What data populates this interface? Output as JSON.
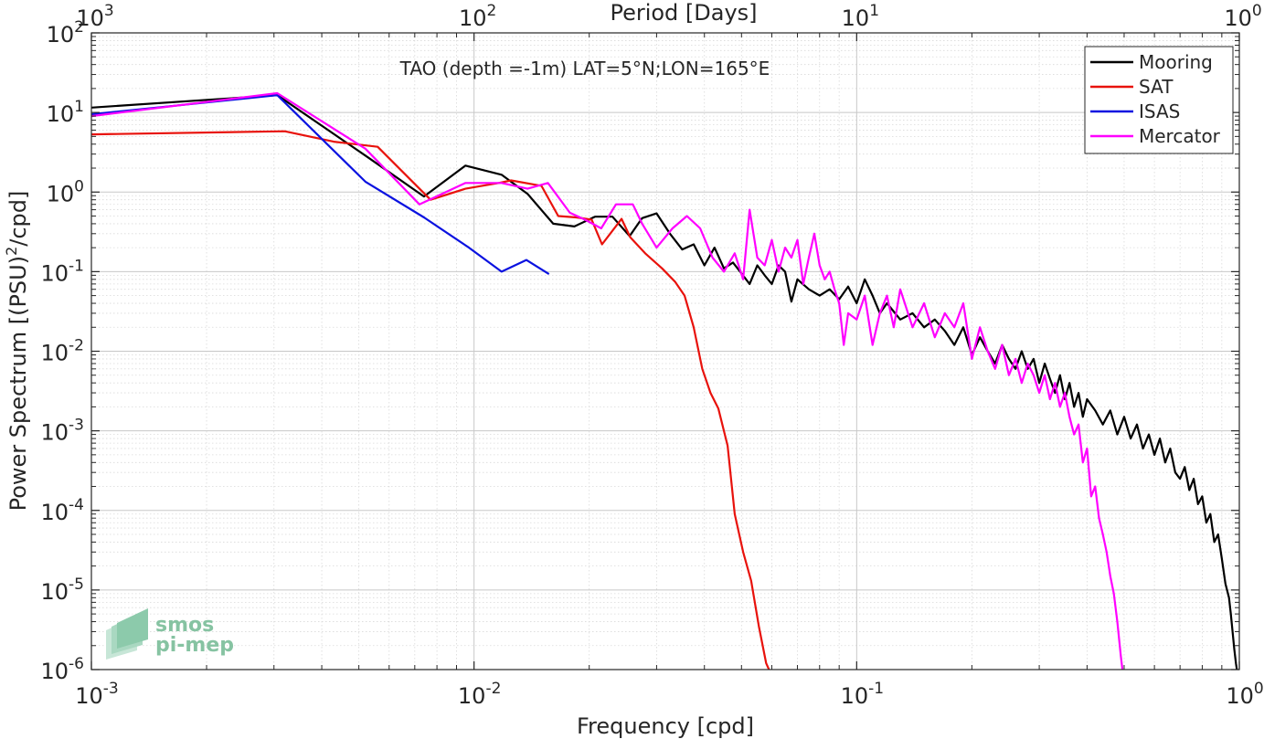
{
  "chart_data": {
    "type": "line",
    "annotation": "TAO (depth =-1m) LAT=5°N;LON=165°E",
    "xlabel": "Frequency [cpd]",
    "ylabel": "Power Spectrum [(PSU)²/cpd]",
    "top_axis_label": "Period [Days]",
    "x_scale": "log",
    "y_scale": "log",
    "xlim": [
      0.001,
      1
    ],
    "ylim": [
      1e-06,
      100
    ],
    "grid": true,
    "legend_position": "top-right",
    "x_ticks": [
      {
        "value": 0.001,
        "mantissa": "10",
        "exp": "-3"
      },
      {
        "value": 0.01,
        "mantissa": "10",
        "exp": "-2"
      },
      {
        "value": 0.1,
        "mantissa": "10",
        "exp": "-1"
      },
      {
        "value": 1,
        "mantissa": "10",
        "exp": "0"
      }
    ],
    "top_ticks": [
      {
        "value": 0.001,
        "mantissa": "10",
        "exp": "3"
      },
      {
        "value": 0.01,
        "mantissa": "10",
        "exp": "2"
      },
      {
        "value": 0.1,
        "mantissa": "10",
        "exp": "1"
      },
      {
        "value": 1,
        "mantissa": "10",
        "exp": "0"
      }
    ],
    "y_ticks": [
      {
        "value": 100,
        "mantissa": "10",
        "exp": "2"
      },
      {
        "value": 10,
        "mantissa": "10",
        "exp": "1"
      },
      {
        "value": 1,
        "mantissa": "10",
        "exp": "0"
      },
      {
        "value": 0.1,
        "mantissa": "10",
        "exp": "-1"
      },
      {
        "value": 0.01,
        "mantissa": "10",
        "exp": "-2"
      },
      {
        "value": 0.001,
        "mantissa": "10",
        "exp": "-3"
      },
      {
        "value": 0.0001,
        "mantissa": "10",
        "exp": "-4"
      },
      {
        "value": 1e-05,
        "mantissa": "10",
        "exp": "-5"
      },
      {
        "value": 1e-06,
        "mantissa": "10",
        "exp": "-6"
      }
    ],
    "series": [
      {
        "name": "Mooring",
        "color": "#000000",
        "points": [
          [
            0.001,
            11.5
          ],
          [
            0.00306,
            16.5
          ],
          [
            0.0053,
            2.7
          ],
          [
            0.0074,
            0.88
          ],
          [
            0.0095,
            2.15
          ],
          [
            0.0118,
            1.65
          ],
          [
            0.0138,
            0.95
          ],
          [
            0.0161,
            0.4
          ],
          [
            0.0183,
            0.37
          ],
          [
            0.0207,
            0.49
          ],
          [
            0.023,
            0.49
          ],
          [
            0.0255,
            0.28
          ],
          [
            0.0275,
            0.47
          ],
          [
            0.03,
            0.54
          ],
          [
            0.0325,
            0.3
          ],
          [
            0.035,
            0.19
          ],
          [
            0.0375,
            0.22
          ],
          [
            0.04,
            0.12
          ],
          [
            0.0425,
            0.2
          ],
          [
            0.045,
            0.11
          ],
          [
            0.0475,
            0.13
          ],
          [
            0.05,
            0.095
          ],
          [
            0.0525,
            0.07
          ],
          [
            0.055,
            0.12
          ],
          [
            0.0575,
            0.09
          ],
          [
            0.06,
            0.07
          ],
          [
            0.0625,
            0.12
          ],
          [
            0.065,
            0.1
          ],
          [
            0.0675,
            0.042
          ],
          [
            0.07,
            0.08
          ],
          [
            0.075,
            0.06
          ],
          [
            0.08,
            0.05
          ],
          [
            0.085,
            0.06
          ],
          [
            0.09,
            0.045
          ],
          [
            0.095,
            0.065
          ],
          [
            0.1,
            0.04
          ],
          [
            0.105,
            0.08
          ],
          [
            0.11,
            0.05
          ],
          [
            0.115,
            0.03
          ],
          [
            0.12,
            0.04
          ],
          [
            0.13,
            0.025
          ],
          [
            0.14,
            0.03
          ],
          [
            0.15,
            0.02
          ],
          [
            0.16,
            0.025
          ],
          [
            0.17,
            0.018
          ],
          [
            0.18,
            0.012
          ],
          [
            0.19,
            0.02
          ],
          [
            0.2,
            0.009
          ],
          [
            0.21,
            0.015
          ],
          [
            0.22,
            0.01
          ],
          [
            0.23,
            0.007
          ],
          [
            0.24,
            0.012
          ],
          [
            0.25,
            0.008
          ],
          [
            0.26,
            0.006
          ],
          [
            0.27,
            0.01
          ],
          [
            0.28,
            0.006
          ],
          [
            0.29,
            0.008
          ],
          [
            0.3,
            0.004
          ],
          [
            0.31,
            0.007
          ],
          [
            0.32,
            0.0045
          ],
          [
            0.33,
            0.003
          ],
          [
            0.34,
            0.005
          ],
          [
            0.35,
            0.0025
          ],
          [
            0.36,
            0.004
          ],
          [
            0.37,
            0.002
          ],
          [
            0.38,
            0.003
          ],
          [
            0.39,
            0.0015
          ],
          [
            0.4,
            0.0025
          ],
          [
            0.42,
            0.0018
          ],
          [
            0.44,
            0.0012
          ],
          [
            0.46,
            0.0018
          ],
          [
            0.48,
            0.0009
          ],
          [
            0.5,
            0.0015
          ],
          [
            0.52,
            0.0008
          ],
          [
            0.54,
            0.0012
          ],
          [
            0.56,
            0.0006
          ],
          [
            0.58,
            0.0009
          ],
          [
            0.6,
            0.0005
          ],
          [
            0.62,
            0.0008
          ],
          [
            0.64,
            0.0004
          ],
          [
            0.66,
            0.0006
          ],
          [
            0.68,
            0.0003
          ],
          [
            0.7,
            0.00025
          ],
          [
            0.72,
            0.00035
          ],
          [
            0.74,
            0.00018
          ],
          [
            0.76,
            0.00025
          ],
          [
            0.78,
            0.00012
          ],
          [
            0.8,
            0.00015
          ],
          [
            0.82,
            7e-05
          ],
          [
            0.84,
            9e-05
          ],
          [
            0.86,
            4e-05
          ],
          [
            0.88,
            5e-05
          ],
          [
            0.9,
            2.5e-05
          ],
          [
            0.92,
            1.2e-05
          ],
          [
            0.94,
            8e-06
          ],
          [
            0.95,
            5e-06
          ],
          [
            0.96,
            3e-06
          ],
          [
            0.97,
            1.8e-06
          ],
          [
            0.98,
            1.2e-06
          ],
          [
            0.985,
            1e-06
          ]
        ]
      },
      {
        "name": "SAT",
        "color": "#e8120c",
        "points": [
          [
            0.001,
            5.3
          ],
          [
            0.0032,
            5.8
          ],
          [
            0.0043,
            4.3
          ],
          [
            0.0056,
            3.7
          ],
          [
            0.0077,
            0.8
          ],
          [
            0.0095,
            1.1
          ],
          [
            0.0116,
            1.3
          ],
          [
            0.0125,
            1.4
          ],
          [
            0.015,
            1.2
          ],
          [
            0.0166,
            0.5
          ],
          [
            0.0185,
            0.48
          ],
          [
            0.0203,
            0.45
          ],
          [
            0.0216,
            0.22
          ],
          [
            0.0243,
            0.46
          ],
          [
            0.0256,
            0.27
          ],
          [
            0.028,
            0.17
          ],
          [
            0.031,
            0.11
          ],
          [
            0.0335,
            0.075
          ],
          [
            0.0355,
            0.05
          ],
          [
            0.0375,
            0.02
          ],
          [
            0.0395,
            0.006
          ],
          [
            0.0415,
            0.003
          ],
          [
            0.0435,
            0.0019
          ],
          [
            0.046,
            0.00065
          ],
          [
            0.048,
            9e-05
          ],
          [
            0.0505,
            3e-05
          ],
          [
            0.053,
            1.3e-05
          ],
          [
            0.0555,
            3.5e-06
          ],
          [
            0.058,
            1.2e-06
          ],
          [
            0.059,
            1e-06
          ]
        ]
      },
      {
        "name": "ISAS",
        "color": "#0a12e0",
        "points": [
          [
            0.001,
            9.5
          ],
          [
            0.00306,
            16.5
          ],
          [
            0.0052,
            1.35
          ],
          [
            0.0074,
            0.48
          ],
          [
            0.0097,
            0.2
          ],
          [
            0.0118,
            0.1
          ],
          [
            0.0137,
            0.14
          ],
          [
            0.0157,
            0.093
          ]
        ]
      },
      {
        "name": "Mercator",
        "color": "#ff00ff",
        "points": [
          [
            0.001,
            9.0
          ],
          [
            0.00306,
            17.5
          ],
          [
            0.0052,
            3.5
          ],
          [
            0.0072,
            0.7
          ],
          [
            0.0095,
            1.3
          ],
          [
            0.0118,
            1.3
          ],
          [
            0.0138,
            1.1
          ],
          [
            0.0156,
            1.3
          ],
          [
            0.0178,
            0.55
          ],
          [
            0.0195,
            0.45
          ],
          [
            0.0215,
            0.35
          ],
          [
            0.0235,
            0.7
          ],
          [
            0.026,
            0.7
          ],
          [
            0.0275,
            0.4
          ],
          [
            0.03,
            0.2
          ],
          [
            0.033,
            0.35
          ],
          [
            0.036,
            0.5
          ],
          [
            0.039,
            0.35
          ],
          [
            0.042,
            0.15
          ],
          [
            0.045,
            0.1
          ],
          [
            0.048,
            0.17
          ],
          [
            0.0505,
            0.08
          ],
          [
            0.0525,
            0.6
          ],
          [
            0.055,
            0.15
          ],
          [
            0.0575,
            0.12
          ],
          [
            0.06,
            0.25
          ],
          [
            0.0625,
            0.1
          ],
          [
            0.065,
            0.2
          ],
          [
            0.0675,
            0.15
          ],
          [
            0.07,
            0.25
          ],
          [
            0.0725,
            0.07
          ],
          [
            0.075,
            0.15
          ],
          [
            0.0775,
            0.3
          ],
          [
            0.08,
            0.12
          ],
          [
            0.0825,
            0.08
          ],
          [
            0.085,
            0.1
          ],
          [
            0.0875,
            0.06
          ],
          [
            0.09,
            0.04
          ],
          [
            0.0925,
            0.012
          ],
          [
            0.095,
            0.03
          ],
          [
            0.1,
            0.025
          ],
          [
            0.105,
            0.05
          ],
          [
            0.11,
            0.012
          ],
          [
            0.115,
            0.03
          ],
          [
            0.12,
            0.05
          ],
          [
            0.125,
            0.02
          ],
          [
            0.13,
            0.06
          ],
          [
            0.14,
            0.02
          ],
          [
            0.15,
            0.04
          ],
          [
            0.16,
            0.015
          ],
          [
            0.17,
            0.03
          ],
          [
            0.18,
            0.02
          ],
          [
            0.19,
            0.04
          ],
          [
            0.2,
            0.008
          ],
          [
            0.21,
            0.02
          ],
          [
            0.22,
            0.01
          ],
          [
            0.23,
            0.006
          ],
          [
            0.24,
            0.012
          ],
          [
            0.25,
            0.005
          ],
          [
            0.26,
            0.008
          ],
          [
            0.27,
            0.004
          ],
          [
            0.28,
            0.007
          ],
          [
            0.29,
            0.005
          ],
          [
            0.3,
            0.003
          ],
          [
            0.31,
            0.005
          ],
          [
            0.32,
            0.0025
          ],
          [
            0.33,
            0.004
          ],
          [
            0.34,
            0.002
          ],
          [
            0.35,
            0.003
          ],
          [
            0.36,
            0.0015
          ],
          [
            0.37,
            0.0009
          ],
          [
            0.38,
            0.0012
          ],
          [
            0.39,
            0.0004
          ],
          [
            0.4,
            0.0006
          ],
          [
            0.41,
            0.00015
          ],
          [
            0.42,
            0.0002
          ],
          [
            0.43,
            8e-05
          ],
          [
            0.44,
            5e-05
          ],
          [
            0.45,
            3e-05
          ],
          [
            0.46,
            1.5e-05
          ],
          [
            0.47,
            9e-06
          ],
          [
            0.48,
            4e-06
          ],
          [
            0.49,
            1.5e-06
          ],
          [
            0.495,
            1e-06
          ]
        ]
      }
    ]
  },
  "logo": {
    "line1": "smos",
    "line2": "pi-mep"
  }
}
